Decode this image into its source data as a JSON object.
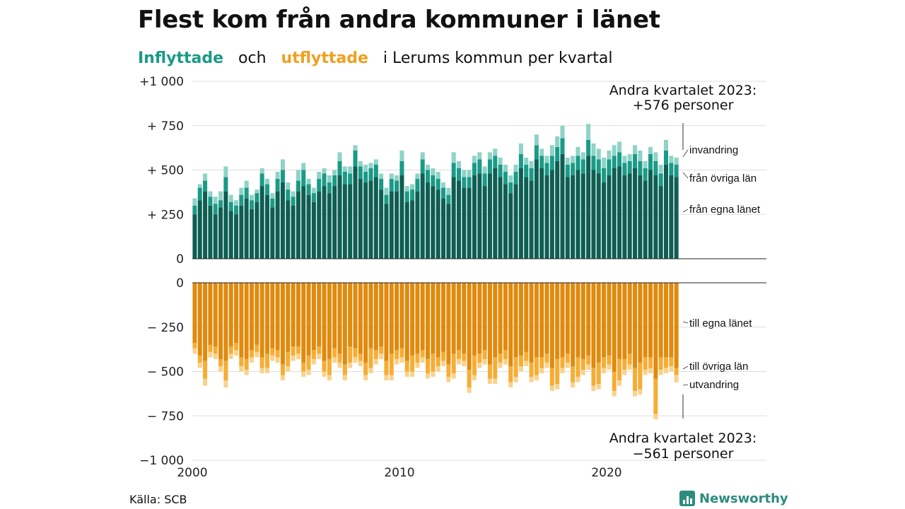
{
  "title": "Flest kom från andra kommuner i länet",
  "subtitle": {
    "inflyttade": "Inflyttade",
    "och": "och",
    "utflyttade": "utflyttade",
    "rest": "i Lerums  kommun  per  kvartal"
  },
  "source": "Källa: SCB",
  "brand": "Newsworthy",
  "colors": {
    "in_own": "#0e5e52",
    "in_other": "#1a9a87",
    "in_abroad": "#8fd3c7",
    "out_own": "#e08a0e",
    "out_other": "#f6ad35",
    "out_abroad": "#f9d28d"
  },
  "chart_data": {
    "type": "bar",
    "stacked": true,
    "x_ticks": [
      "2000",
      "2010",
      "2020"
    ],
    "xlim": [
      2000,
      2028
    ],
    "top_panel": {
      "y_ticks": [
        "+1 000",
        "+ 750",
        "+ 500",
        "+ 250",
        "0"
      ],
      "ylim": [
        0,
        1000
      ],
      "annotation": [
        "Andra kvartalet 2023:",
        "+576 personer"
      ],
      "series_labels": [
        "invandring",
        "från övriga län",
        "från egna länet"
      ]
    },
    "bottom_panel": {
      "y_ticks": [
        "0",
        "− 250",
        "− 500",
        "− 750",
        "−1 000"
      ],
      "ylim": [
        -1000,
        0
      ],
      "annotation": [
        "Andra kvartalet 2023:",
        "−561 personer"
      ],
      "series_labels": [
        "till egna länet",
        "till övriga län",
        "utvandring"
      ]
    },
    "quarters_start": "2000 Q1",
    "quarters_end": "2023 Q2",
    "inflyttade": {
      "from_own_lan": [
        250,
        330,
        380,
        300,
        250,
        290,
        380,
        270,
        250,
        300,
        340,
        280,
        320,
        410,
        360,
        290,
        380,
        430,
        330,
        300,
        380,
        410,
        360,
        320,
        380,
        410,
        370,
        410,
        470,
        420,
        420,
        520,
        450,
        430,
        440,
        460,
        390,
        310,
        380,
        380,
        470,
        320,
        330,
        380,
        480,
        430,
        410,
        390,
        340,
        310,
        460,
        440,
        400,
        400,
        470,
        480,
        410,
        480,
        510,
        460,
        420,
        370,
        420,
        510,
        460,
        440,
        560,
        510,
        470,
        500,
        550,
        590,
        460,
        470,
        500,
        480,
        580,
        500,
        480,
        430,
        470,
        510,
        520,
        470,
        480,
        510,
        470,
        440,
        500,
        470,
        410,
        530,
        470,
        460
      ],
      "from_other_lan": [
        50,
        70,
        60,
        50,
        60,
        40,
        80,
        50,
        50,
        60,
        60,
        50,
        50,
        70,
        60,
        50,
        70,
        70,
        60,
        50,
        60,
        90,
        60,
        50,
        70,
        70,
        60,
        60,
        80,
        70,
        60,
        90,
        70,
        60,
        70,
        70,
        60,
        50,
        70,
        60,
        80,
        60,
        60,
        70,
        80,
        70,
        60,
        60,
        60,
        50,
        80,
        70,
        60,
        60,
        70,
        80,
        70,
        80,
        70,
        70,
        70,
        60,
        70,
        80,
        70,
        70,
        80,
        70,
        70,
        80,
        80,
        90,
        70,
        70,
        80,
        80,
        90,
        80,
        80,
        80,
        90,
        70,
        80,
        70,
        70,
        80,
        80,
        70,
        90,
        80,
        70,
        80,
        70,
        70
      ],
      "abroad": [
        40,
        20,
        40,
        30,
        40,
        50,
        60,
        40,
        30,
        40,
        40,
        30,
        20,
        30,
        30,
        30,
        40,
        60,
        40,
        30,
        60,
        40,
        30,
        30,
        40,
        30,
        40,
        30,
        50,
        30,
        40,
        30,
        30,
        40,
        30,
        30,
        30,
        40,
        30,
        30,
        60,
        30,
        30,
        30,
        40,
        30,
        40,
        40,
        30,
        40,
        60,
        40,
        40,
        40,
        40,
        40,
        40,
        40,
        40,
        40,
        40,
        40,
        40,
        60,
        40,
        40,
        60,
        40,
        40,
        60,
        60,
        70,
        40,
        40,
        50,
        40,
        90,
        70,
        60,
        60,
        50,
        60,
        60,
        40,
        40,
        50,
        60,
        40,
        40,
        50,
        50,
        60,
        40,
        40
      ]
    },
    "utflyttade": {
      "to_own_lan": [
        -340,
        -410,
        -440,
        -350,
        -360,
        -430,
        -440,
        -360,
        -340,
        -420,
        -430,
        -380,
        -350,
        -420,
        -400,
        -370,
        -380,
        -460,
        -390,
        -360,
        -360,
        -450,
        -410,
        -380,
        -360,
        -440,
        -430,
        -370,
        -400,
        -460,
        -360,
        -370,
        -400,
        -450,
        -370,
        -380,
        -360,
        -440,
        -400,
        -380,
        -370,
        -440,
        -410,
        -400,
        -380,
        -430,
        -400,
        -420,
        -390,
        -460,
        -400,
        -380,
        -400,
        -490,
        -410,
        -400,
        -380,
        -460,
        -420,
        -400,
        -380,
        -470,
        -420,
        -410,
        -390,
        -450,
        -420,
        -420,
        -400,
        -480,
        -430,
        -420,
        -400,
        -470,
        -420,
        -430,
        -410,
        -480,
        -450,
        -420,
        -410,
        -500,
        -430,
        -430,
        -400,
        -480,
        -450,
        -420,
        -420,
        -540,
        -420,
        -420,
        -420,
        -480
      ],
      "to_other_lan": [
        -30,
        -40,
        -100,
        -40,
        -40,
        -40,
        -110,
        -40,
        -40,
        -50,
        -60,
        -40,
        -40,
        -60,
        -80,
        -40,
        -40,
        -60,
        -80,
        -50,
        -40,
        -50,
        -80,
        -50,
        -40,
        -60,
        -90,
        -50,
        -50,
        -60,
        -90,
        -50,
        -40,
        -70,
        -110,
        -50,
        -40,
        -80,
        -120,
        -50,
        -50,
        -60,
        -90,
        -50,
        -40,
        -80,
        -100,
        -50,
        -50,
        -70,
        -110,
        -50,
        -40,
        -100,
        -110,
        -50,
        -50,
        -80,
        -120,
        -50,
        -50,
        -90,
        -110,
        -60,
        -50,
        -80,
        -100,
        -60,
        -50,
        -100,
        -140,
        -60,
        -50,
        -90,
        -110,
        -60,
        -50,
        -100,
        -120,
        -60,
        -50,
        -110,
        -120,
        -60,
        -60,
        -130,
        -150,
        -70,
        -60,
        -200,
        -70,
        -60,
        -50,
        -40
      ],
      "abroad": [
        -30,
        -30,
        -40,
        -30,
        -30,
        -30,
        -40,
        -30,
        -30,
        -30,
        -30,
        -30,
        -30,
        -30,
        -30,
        -30,
        -30,
        -30,
        -30,
        -30,
        -30,
        -30,
        -30,
        -30,
        -30,
        -30,
        -30,
        -30,
        -30,
        -30,
        -30,
        -30,
        -30,
        -30,
        -30,
        -30,
        -30,
        -30,
        -30,
        -30,
        -30,
        -30,
        -30,
        -30,
        -30,
        -30,
        -30,
        -30,
        -30,
        -30,
        -30,
        -30,
        -30,
        -30,
        -30,
        -30,
        -30,
        -30,
        -30,
        -30,
        -30,
        -30,
        -30,
        -30,
        -30,
        -30,
        -30,
        -30,
        -30,
        -30,
        -30,
        -30,
        -30,
        -30,
        -30,
        -30,
        -30,
        -30,
        -30,
        -30,
        -30,
        -30,
        -30,
        -30,
        -30,
        -30,
        -30,
        -30,
        -30,
        -30,
        -30,
        -30,
        -30,
        -41
      ]
    }
  }
}
